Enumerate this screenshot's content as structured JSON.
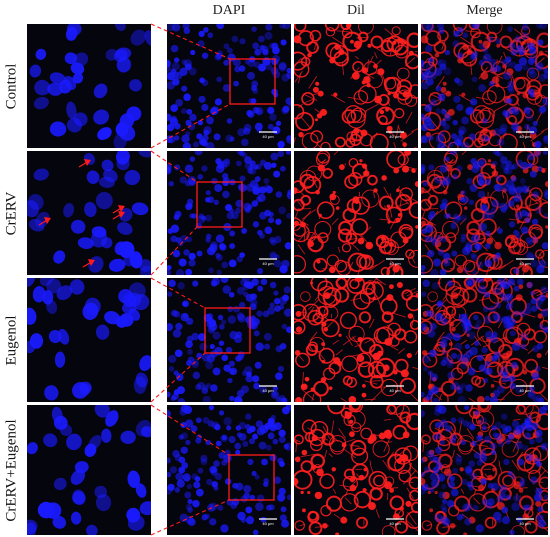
{
  "columns": {
    "dapi": "DAPI",
    "dil": "Dil",
    "merge": "Merge"
  },
  "rows": [
    {
      "label": "Control"
    },
    {
      "label": "CrERV"
    },
    {
      "label": "Eugenol"
    },
    {
      "label": "CrERV+Eugenol"
    }
  ],
  "colors": {
    "nucleus": "#1a1aff",
    "membrane": "#ff2020",
    "background": "#05050d",
    "annotation": "#ff1a1a",
    "scale_bar": "#ffffff"
  },
  "scale_bar_label": "40 μm",
  "arrows_in_row": 1,
  "arrow_count": 5
}
